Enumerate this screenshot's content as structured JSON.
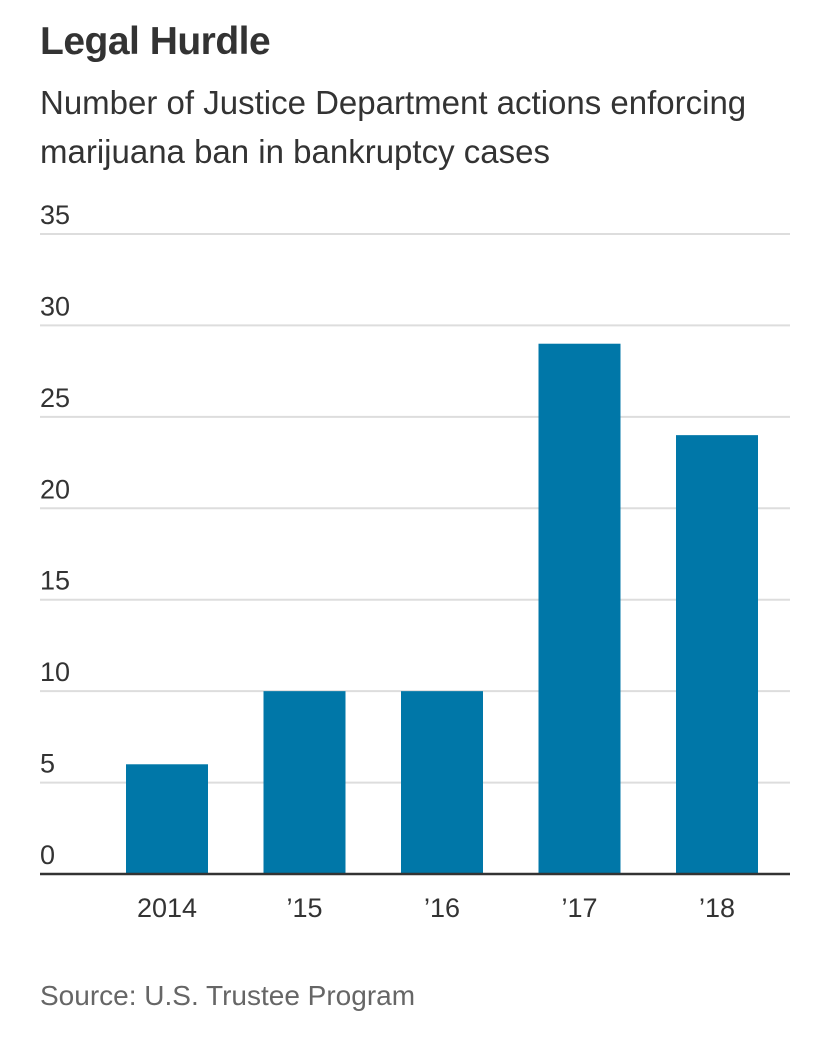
{
  "header": {
    "title": "Legal Hurdle",
    "subtitle": "Number of Justice Department actions enforcing marijuana ban in bankruptcy cases"
  },
  "footer": {
    "source": "Source: U.S. Trustee Program"
  },
  "colors": {
    "bar": "#0077a8",
    "grid": "#dddddd",
    "axis": "#333333",
    "tick_text": "#333333"
  },
  "chart_data": {
    "type": "bar",
    "title": "Legal Hurdle",
    "subtitle": "Number of Justice Department actions enforcing marijuana ban in bankruptcy cases",
    "xlabel": "",
    "ylabel": "",
    "categories": [
      "2014",
      "’15",
      "’16",
      "’17",
      "’18"
    ],
    "values": [
      6,
      10,
      10,
      29,
      24
    ],
    "ylim": [
      0,
      35
    ],
    "yticks": [
      0,
      5,
      10,
      15,
      20,
      25,
      30,
      35
    ],
    "grid": true,
    "legend": "none",
    "source": "Source: U.S. Trustee Program"
  }
}
